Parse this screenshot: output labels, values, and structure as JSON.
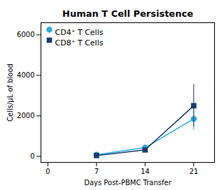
{
  "chart_data": {
    "type": "line",
    "title": "Human T Cell Persistence",
    "xlabel": "Days Post-PBMC Transfer",
    "ylabel": "Cells/µL of blood",
    "x": [
      7,
      14,
      21
    ],
    "series": [
      {
        "name": "CD4⁺ T Cells",
        "color": "#2AABE2",
        "marker": "circle",
        "values": [
          80,
          430,
          1850
        ],
        "yerr": [
          30,
          90,
          550
        ]
      },
      {
        "name": "CD8⁺ T Cells",
        "color": "#1A3A6C",
        "marker": "square",
        "values": [
          40,
          320,
          2500
        ],
        "yerr": [
          20,
          70,
          1050
        ]
      }
    ],
    "xlim": [
      -1,
      24
    ],
    "xticks": [
      0,
      7,
      14,
      21
    ],
    "ylim": [
      -300,
      6600
    ],
    "yticks": [
      0,
      2000,
      4000,
      6000
    ],
    "legend": "upper left",
    "grid": false
  }
}
